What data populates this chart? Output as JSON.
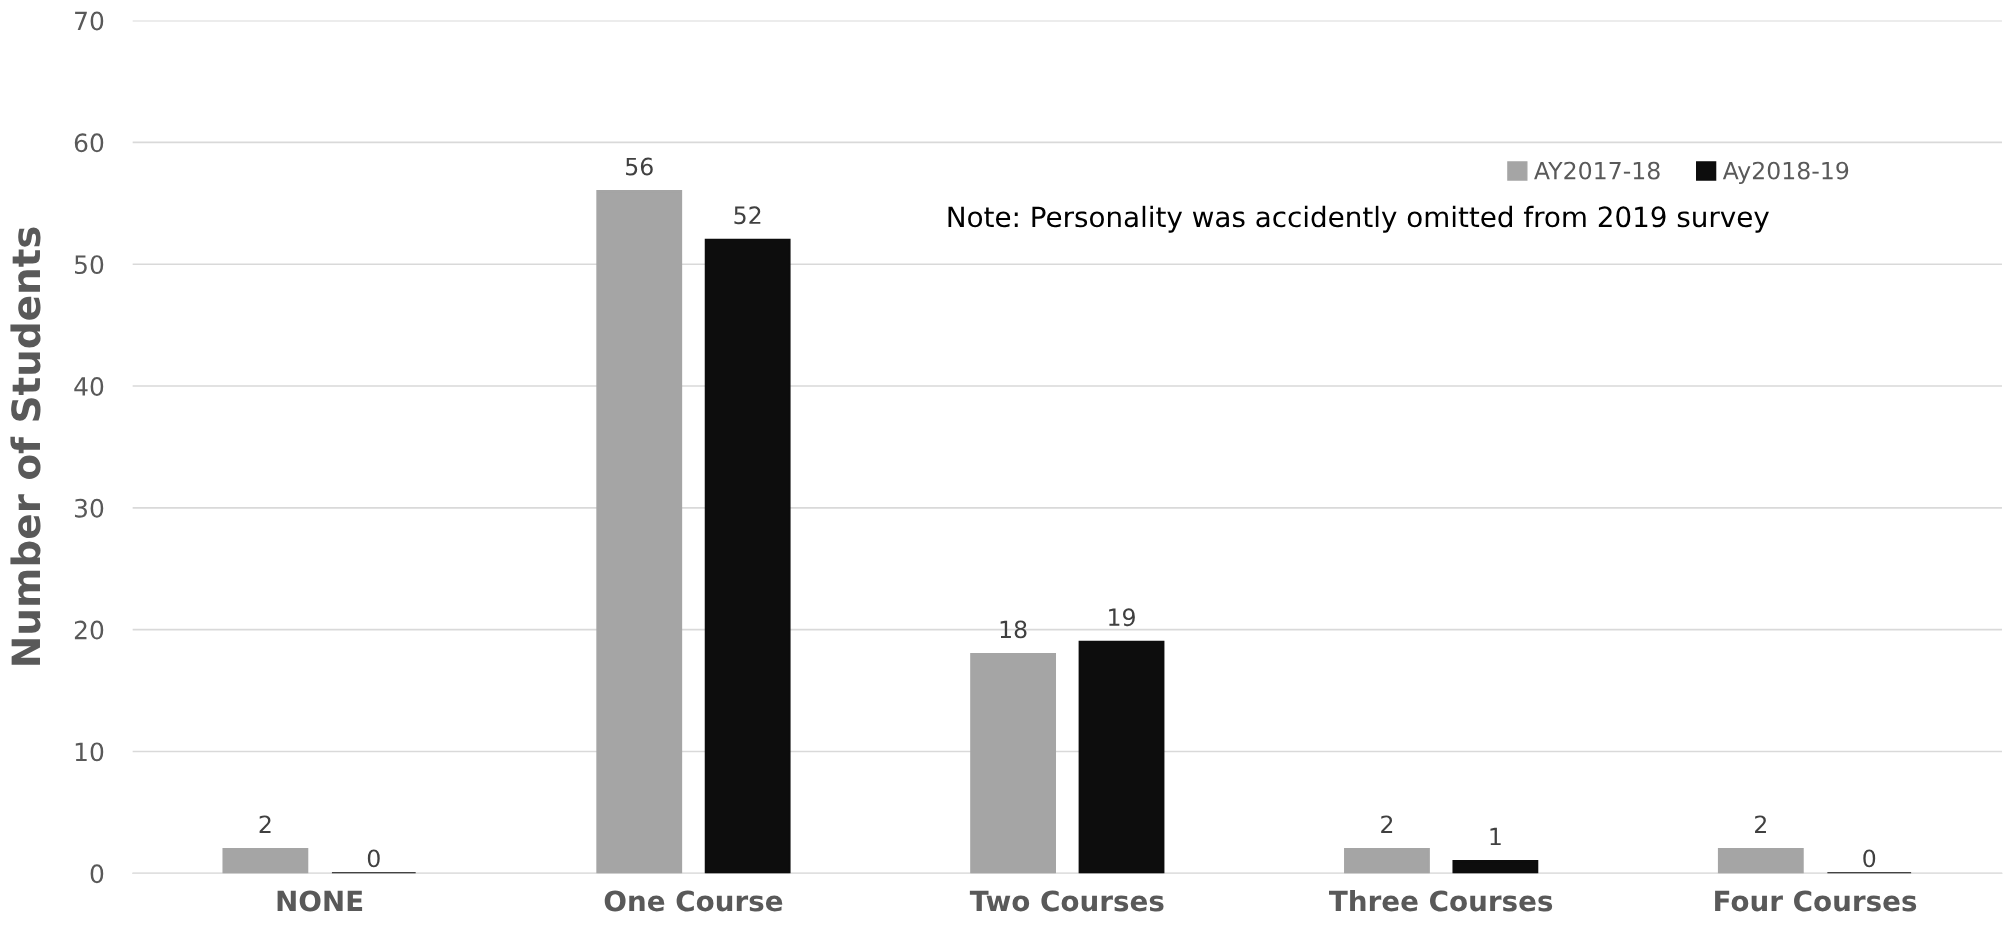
{
  "chart_data": {
    "type": "bar",
    "ylabel": "Number of Students",
    "categories": [
      "NONE",
      "One Course",
      "Two Courses",
      "Three Courses",
      "Four Courses"
    ],
    "series": [
      {
        "name": "AY2017-18",
        "color": "#a5a5a5",
        "values": [
          2,
          56,
          18,
          2,
          2
        ]
      },
      {
        "name": "Ay2018-19",
        "color": "#0d0d0d",
        "values": [
          0,
          52,
          19,
          1,
          0
        ]
      }
    ],
    "ylim": [
      0,
      70
    ],
    "yticks": [
      0,
      10,
      20,
      30,
      40,
      50,
      60,
      70
    ],
    "grid": "y",
    "legend": "top right",
    "data_labels": true,
    "annotations": [
      "Note: Personality was accidently omitted from 2019 survey"
    ]
  }
}
